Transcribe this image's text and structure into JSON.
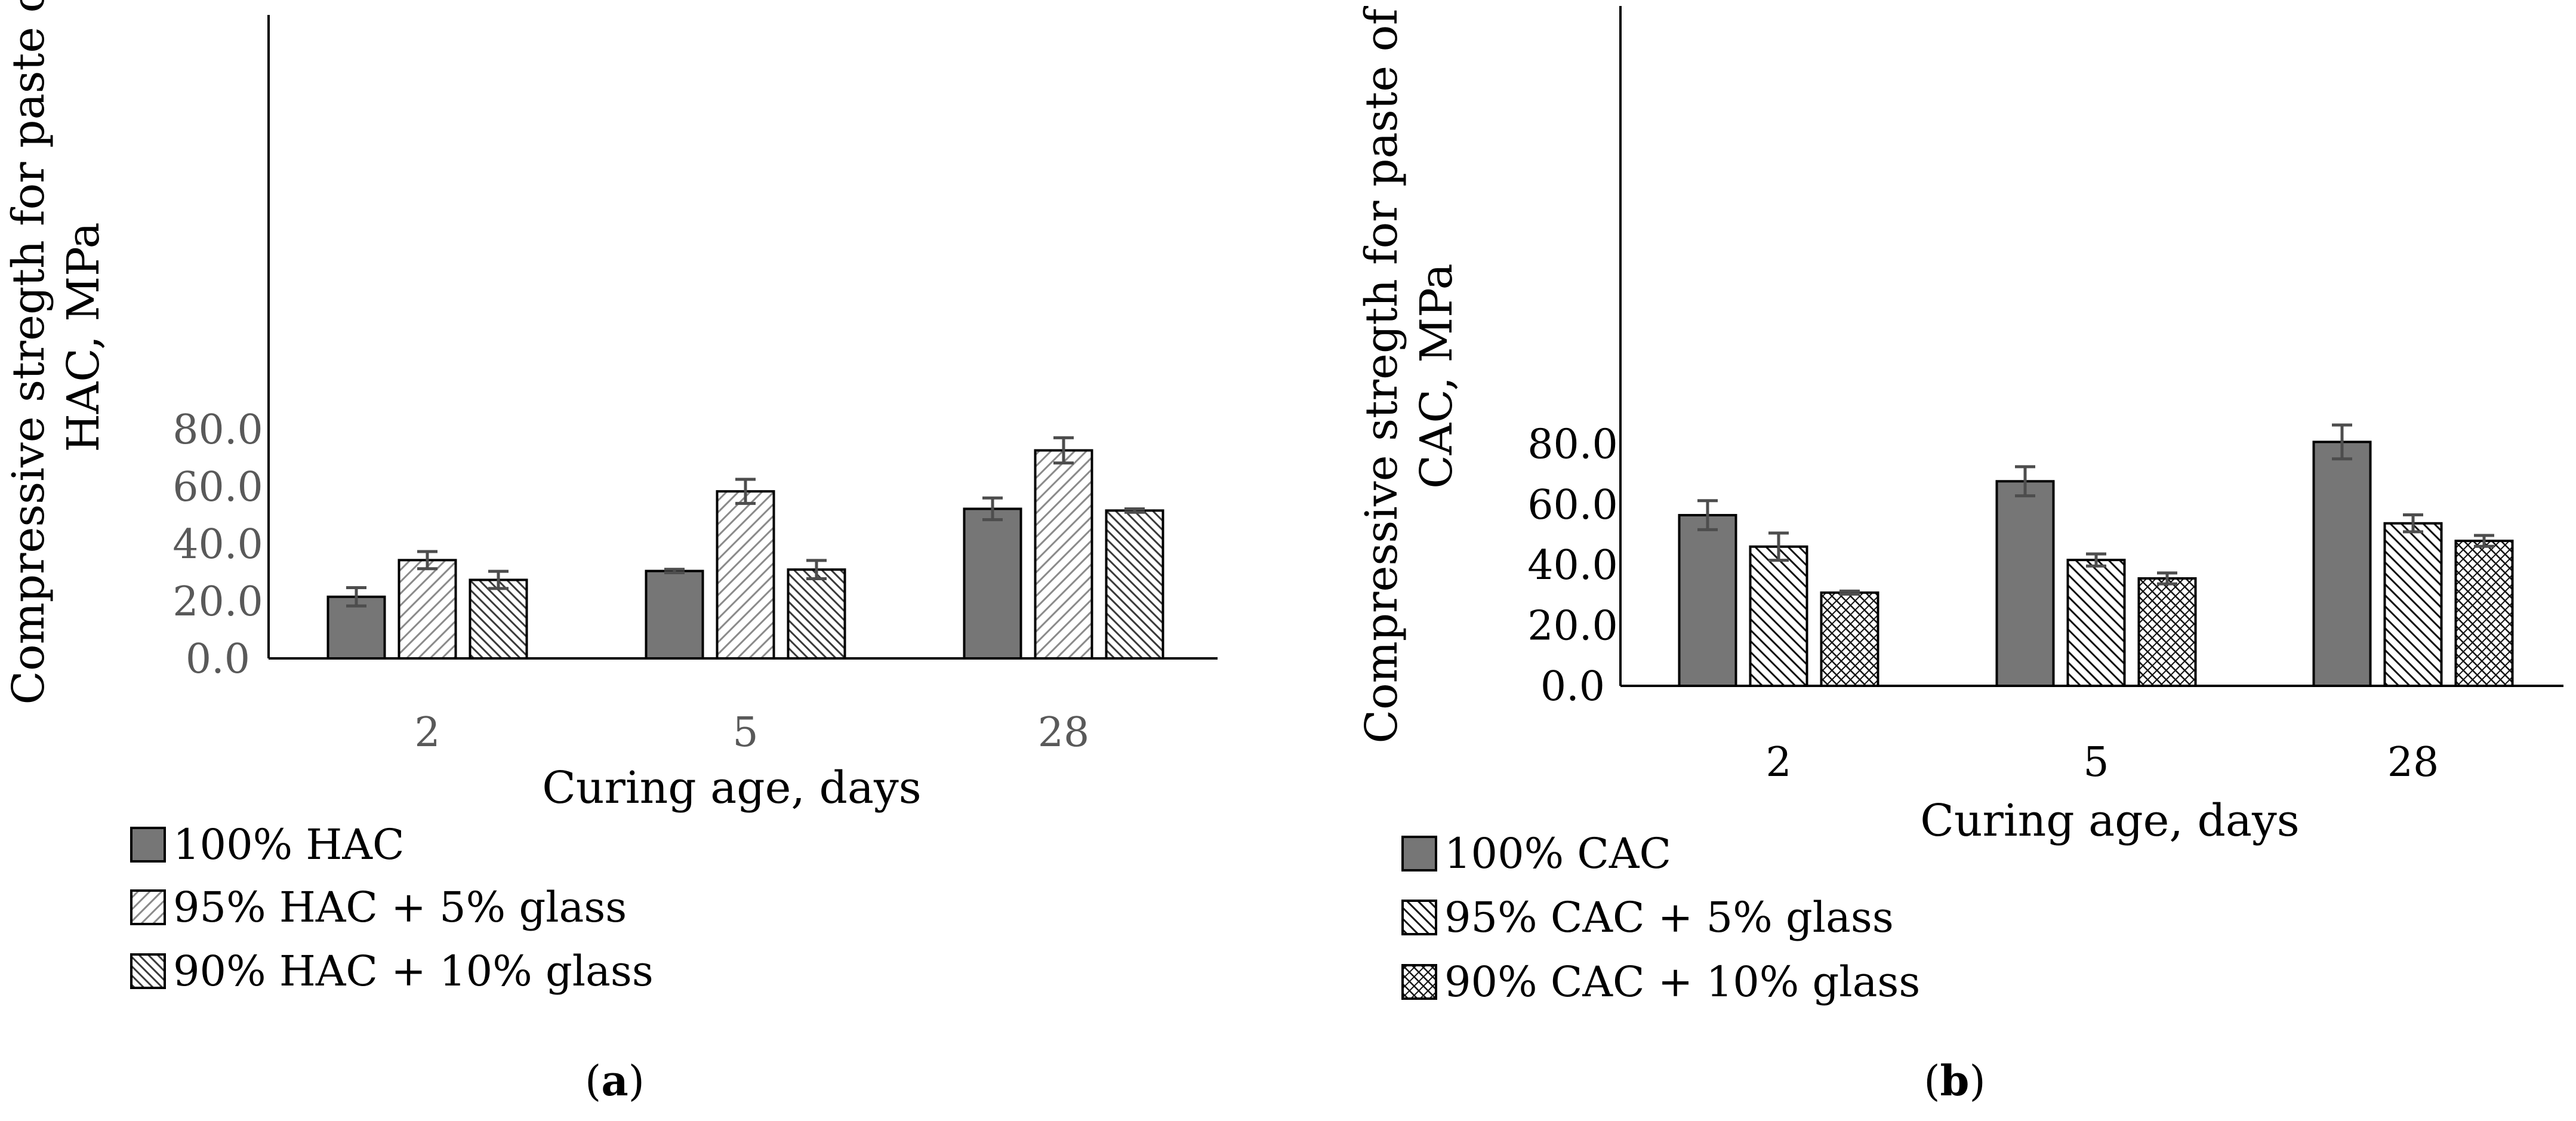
{
  "colors": {
    "solid": "#767676",
    "axis": "#000000",
    "tick_a": "#595959",
    "tick_b": "#000000",
    "error": "#4d4d4d"
  },
  "chart_data": [
    {
      "panel": "a",
      "type": "bar",
      "caption_label": "a",
      "caption_open": "(",
      "caption_close": ")",
      "xlabel": "Curing age, days",
      "ylabel_line1": "Compressive stregth for paste of",
      "ylabel_line2": "HAC, MPa",
      "categories": [
        "2",
        "5",
        "28"
      ],
      "ylim": [
        0,
        90
      ],
      "yticks": [
        0,
        20,
        40,
        60,
        80
      ],
      "ytick_labels": [
        "0.0",
        "20.0",
        "40.0",
        "60.0",
        "80.0"
      ],
      "series": [
        {
          "name": "100% HAC",
          "pattern": "solid",
          "values": [
            21.5,
            30.5,
            52.2
          ],
          "errors": [
            3.2,
            0.6,
            3.8
          ]
        },
        {
          "name": "95% HAC + 5% glass",
          "pattern": "diag-light",
          "values": [
            34.3,
            58.3,
            72.6
          ],
          "errors": [
            3.0,
            4.2,
            4.4
          ]
        },
        {
          "name": "90% HAC + 10% glass",
          "pattern": "diag-dense",
          "values": [
            27.4,
            31.0,
            51.6
          ],
          "errors": [
            3.0,
            3.2,
            0.6
          ]
        }
      ]
    },
    {
      "panel": "b",
      "type": "bar",
      "caption_label": "b",
      "caption_open": "(",
      "caption_close": ")",
      "xlabel": "Curing age, days",
      "ylabel_line1": "Compressive stregth for paste of",
      "ylabel_line2": "CAC, MPa",
      "categories": [
        "2",
        "5",
        "28"
      ],
      "ylim": [
        0,
        90
      ],
      "yticks": [
        0,
        20,
        40,
        60,
        80
      ],
      "ytick_labels": [
        "0.0",
        "20.0",
        "40.0",
        "60.0",
        "80.0"
      ],
      "series": [
        {
          "name": "100% CAC",
          "pattern": "solid",
          "values": [
            56.4,
            67.6,
            80.6
          ],
          "errors": [
            4.8,
            4.8,
            5.6
          ]
        },
        {
          "name": "95% CAC + 5% glass",
          "pattern": "cross-dense",
          "values": [
            46.0,
            41.6,
            53.7
          ],
          "errors": [
            4.5,
            2.0,
            2.8
          ]
        },
        {
          "name": "90% CAC + 10% glass",
          "pattern": "cross-dense-2",
          "values": [
            30.8,
            35.5,
            47.9
          ],
          "errors": [
            0.5,
            1.8,
            1.8
          ]
        }
      ]
    }
  ]
}
